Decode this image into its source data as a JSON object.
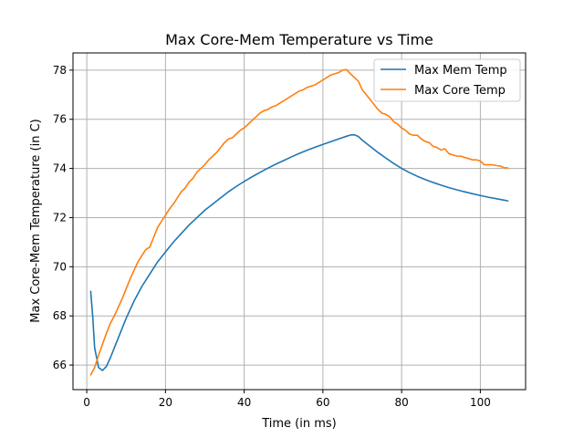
{
  "chart_data": {
    "type": "line",
    "title": "Max Core-Mem Temperature vs Time",
    "xlabel": "Time (in ms)",
    "ylabel": "Max Core-Mem Temperature (in C)",
    "xlim": [
      -3.5,
      111.5
    ],
    "ylim": [
      65.0,
      78.7
    ],
    "xticks": [
      0,
      20,
      40,
      60,
      80,
      100
    ],
    "yticks": [
      66,
      68,
      70,
      72,
      74,
      76,
      78
    ],
    "grid": true,
    "legend": "top-right",
    "series": [
      {
        "name": "Max Mem Temp",
        "color": "#1f77b4",
        "points": [
          [
            1,
            69.0
          ],
          [
            1.5,
            68.0
          ],
          [
            2,
            66.7
          ],
          [
            3,
            65.9
          ],
          [
            4,
            65.78
          ],
          [
            5,
            65.95
          ],
          [
            6,
            66.3
          ],
          [
            7,
            66.7
          ],
          [
            8,
            67.1
          ],
          [
            9,
            67.5
          ],
          [
            10,
            67.9
          ],
          [
            12,
            68.6
          ],
          [
            14,
            69.2
          ],
          [
            16,
            69.7
          ],
          [
            18,
            70.2
          ],
          [
            20,
            70.6
          ],
          [
            22,
            71.0
          ],
          [
            24,
            71.35
          ],
          [
            26,
            71.7
          ],
          [
            28,
            72.0
          ],
          [
            30,
            72.3
          ],
          [
            32,
            72.55
          ],
          [
            34,
            72.8
          ],
          [
            36,
            73.05
          ],
          [
            38,
            73.27
          ],
          [
            40,
            73.47
          ],
          [
            42,
            73.66
          ],
          [
            44,
            73.84
          ],
          [
            46,
            74.01
          ],
          [
            48,
            74.17
          ],
          [
            50,
            74.32
          ],
          [
            52,
            74.47
          ],
          [
            54,
            74.61
          ],
          [
            56,
            74.74
          ],
          [
            58,
            74.86
          ],
          [
            60,
            74.98
          ],
          [
            62,
            75.09
          ],
          [
            64,
            75.2
          ],
          [
            66,
            75.31
          ],
          [
            67,
            75.36
          ],
          [
            68,
            75.37
          ],
          [
            69,
            75.3
          ],
          [
            70,
            75.15
          ],
          [
            72,
            74.9
          ],
          [
            74,
            74.65
          ],
          [
            76,
            74.42
          ],
          [
            78,
            74.2
          ],
          [
            80,
            74.0
          ],
          [
            82,
            73.83
          ],
          [
            84,
            73.68
          ],
          [
            86,
            73.55
          ],
          [
            88,
            73.43
          ],
          [
            90,
            73.32
          ],
          [
            92,
            73.22
          ],
          [
            94,
            73.13
          ],
          [
            96,
            73.05
          ],
          [
            98,
            72.97
          ],
          [
            100,
            72.9
          ],
          [
            102,
            72.83
          ],
          [
            104,
            72.77
          ],
          [
            106,
            72.71
          ],
          [
            107,
            72.68
          ]
        ]
      },
      {
        "name": "Max Core Temp",
        "color": "#ff7f0e",
        "points": [
          [
            1,
            65.6
          ],
          [
            2,
            65.9
          ],
          [
            3,
            66.4
          ],
          [
            4,
            66.85
          ],
          [
            5,
            67.3
          ],
          [
            6,
            67.7
          ],
          [
            7,
            68.0
          ],
          [
            8,
            68.35
          ],
          [
            9,
            68.7
          ],
          [
            10,
            69.1
          ],
          [
            11,
            69.5
          ],
          [
            12,
            69.85
          ],
          [
            13,
            70.2
          ],
          [
            14,
            70.45
          ],
          [
            15,
            70.7
          ],
          [
            16,
            70.8
          ],
          [
            17,
            71.2
          ],
          [
            18,
            71.6
          ],
          [
            19,
            71.85
          ],
          [
            20,
            72.1
          ],
          [
            21,
            72.35
          ],
          [
            22,
            72.55
          ],
          [
            23,
            72.8
          ],
          [
            24,
            73.05
          ],
          [
            25,
            73.2
          ],
          [
            26,
            73.45
          ],
          [
            27,
            73.6
          ],
          [
            28,
            73.85
          ],
          [
            29,
            74.0
          ],
          [
            30,
            74.15
          ],
          [
            31,
            74.35
          ],
          [
            32,
            74.5
          ],
          [
            33,
            74.65
          ],
          [
            34,
            74.85
          ],
          [
            35,
            75.05
          ],
          [
            36,
            75.2
          ],
          [
            37,
            75.25
          ],
          [
            38,
            75.4
          ],
          [
            39,
            75.55
          ],
          [
            40,
            75.65
          ],
          [
            41,
            75.8
          ],
          [
            42,
            75.95
          ],
          [
            43,
            76.1
          ],
          [
            44,
            76.25
          ],
          [
            45,
            76.35
          ],
          [
            46,
            76.4
          ],
          [
            47,
            76.5
          ],
          [
            48,
            76.55
          ],
          [
            49,
            76.65
          ],
          [
            50,
            76.75
          ],
          [
            51,
            76.85
          ],
          [
            52,
            76.95
          ],
          [
            53,
            77.05
          ],
          [
            54,
            77.15
          ],
          [
            55,
            77.2
          ],
          [
            56,
            77.3
          ],
          [
            57,
            77.35
          ],
          [
            58,
            77.4
          ],
          [
            59,
            77.5
          ],
          [
            60,
            77.6
          ],
          [
            61,
            77.7
          ],
          [
            62,
            77.8
          ],
          [
            63,
            77.85
          ],
          [
            64,
            77.9
          ],
          [
            65,
            78.0
          ],
          [
            66,
            78.02
          ],
          [
            67,
            77.85
          ],
          [
            68,
            77.7
          ],
          [
            69,
            77.55
          ],
          [
            70,
            77.2
          ],
          [
            71,
            77.0
          ],
          [
            72,
            76.8
          ],
          [
            73,
            76.6
          ],
          [
            74,
            76.4
          ],
          [
            75,
            76.25
          ],
          [
            76,
            76.2
          ],
          [
            77,
            76.1
          ],
          [
            78,
            75.9
          ],
          [
            79,
            75.8
          ],
          [
            80,
            75.65
          ],
          [
            81,
            75.55
          ],
          [
            82,
            75.4
          ],
          [
            83,
            75.35
          ],
          [
            84,
            75.35
          ],
          [
            85,
            75.2
          ],
          [
            86,
            75.1
          ],
          [
            87,
            75.05
          ],
          [
            88,
            74.9
          ],
          [
            89,
            74.85
          ],
          [
            90,
            74.75
          ],
          [
            91,
            74.8
          ],
          [
            92,
            74.6
          ],
          [
            93,
            74.55
          ],
          [
            94,
            74.5
          ],
          [
            95,
            74.5
          ],
          [
            96,
            74.45
          ],
          [
            97,
            74.4
          ],
          [
            98,
            74.35
          ],
          [
            99,
            74.35
          ],
          [
            100,
            74.3
          ],
          [
            101,
            74.15
          ],
          [
            102,
            74.15
          ],
          [
            103,
            74.15
          ],
          [
            104,
            74.12
          ],
          [
            105,
            74.1
          ],
          [
            106,
            74.03
          ],
          [
            107,
            74.02
          ]
        ]
      }
    ]
  }
}
